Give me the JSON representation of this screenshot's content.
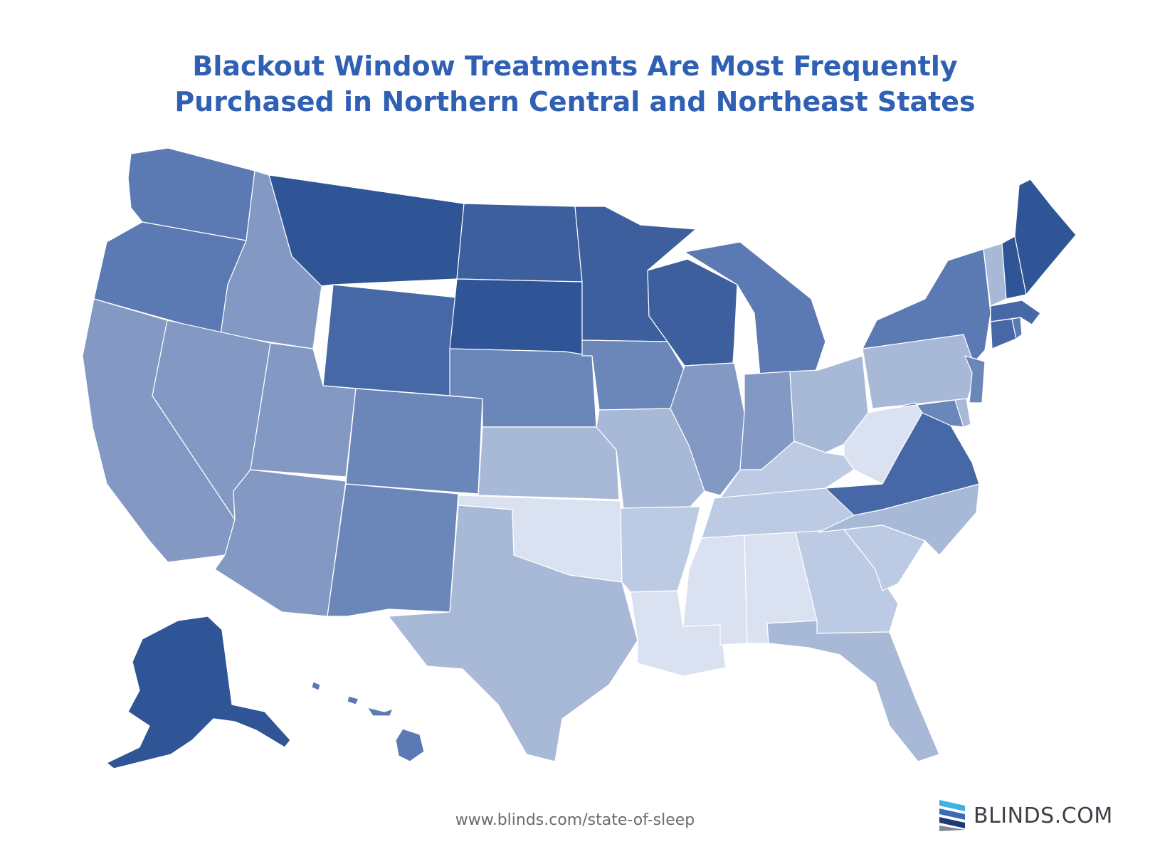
{
  "title": {
    "line1": "Blackout Window Treatments Are Most Frequently",
    "line2": "Purchased in Northern Central and Northeast States"
  },
  "footer": {
    "source_url": "www.blinds.com/state-of-sleep",
    "brand_name": "BLINDS.COM"
  },
  "colors": {
    "title": "#3060b4",
    "level_1": "#2f5597",
    "level_2": "#3d5f9e",
    "level_3": "#4668a6",
    "level_4": "#5b79b2",
    "level_5": "#6b87b9",
    "level_6": "#8399c4",
    "level_7": "#a8b9d8",
    "level_8": "#bccbe3",
    "level_9": "#dae2f2",
    "logo_light": "#3db2e3",
    "logo_mid": "#3a6cb4",
    "logo_dark": "#1e3a7a"
  },
  "map_data": {
    "type": "choropleth",
    "scale": "darker = more frequent purchases",
    "states": [
      {
        "id": "MT",
        "level": 1
      },
      {
        "id": "SD",
        "level": 1
      },
      {
        "id": "ME",
        "level": 1
      },
      {
        "id": "AK",
        "level": 1
      },
      {
        "id": "NH",
        "level": 1
      },
      {
        "id": "ND",
        "level": 2
      },
      {
        "id": "MN",
        "level": 2
      },
      {
        "id": "WI",
        "level": 2
      },
      {
        "id": "WY",
        "level": 3
      },
      {
        "id": "VA",
        "level": 3
      },
      {
        "id": "CT",
        "level": 3
      },
      {
        "id": "MA",
        "level": 3
      },
      {
        "id": "WA",
        "level": 4
      },
      {
        "id": "OR",
        "level": 4
      },
      {
        "id": "NY",
        "level": 4
      },
      {
        "id": "MI",
        "level": 4
      },
      {
        "id": "HI",
        "level": 4
      },
      {
        "id": "RI",
        "level": 4
      },
      {
        "id": "NE",
        "level": 5
      },
      {
        "id": "IA",
        "level": 5
      },
      {
        "id": "CO",
        "level": 5
      },
      {
        "id": "NM",
        "level": 5
      },
      {
        "id": "NJ",
        "level": 5
      },
      {
        "id": "MD",
        "level": 5
      },
      {
        "id": "ID",
        "level": 6
      },
      {
        "id": "NV",
        "level": 6
      },
      {
        "id": "CA",
        "level": 6
      },
      {
        "id": "UT",
        "level": 6
      },
      {
        "id": "AZ",
        "level": 6
      },
      {
        "id": "IL",
        "level": 6
      },
      {
        "id": "IN",
        "level": 6
      },
      {
        "id": "KS",
        "level": 7
      },
      {
        "id": "MO",
        "level": 7
      },
      {
        "id": "TX",
        "level": 7
      },
      {
        "id": "OH",
        "level": 7
      },
      {
        "id": "PA",
        "level": 7
      },
      {
        "id": "FL",
        "level": 7
      },
      {
        "id": "NC",
        "level": 7
      },
      {
        "id": "VT",
        "level": 7
      },
      {
        "id": "DE",
        "level": 7
      },
      {
        "id": "AR",
        "level": 8
      },
      {
        "id": "KY",
        "level": 8
      },
      {
        "id": "TN",
        "level": 8
      },
      {
        "id": "GA",
        "level": 8
      },
      {
        "id": "SC",
        "level": 8
      },
      {
        "id": "OK",
        "level": 9
      },
      {
        "id": "LA",
        "level": 9
      },
      {
        "id": "MS",
        "level": 9
      },
      {
        "id": "AL",
        "level": 9
      },
      {
        "id": "WV",
        "level": 9
      }
    ]
  }
}
